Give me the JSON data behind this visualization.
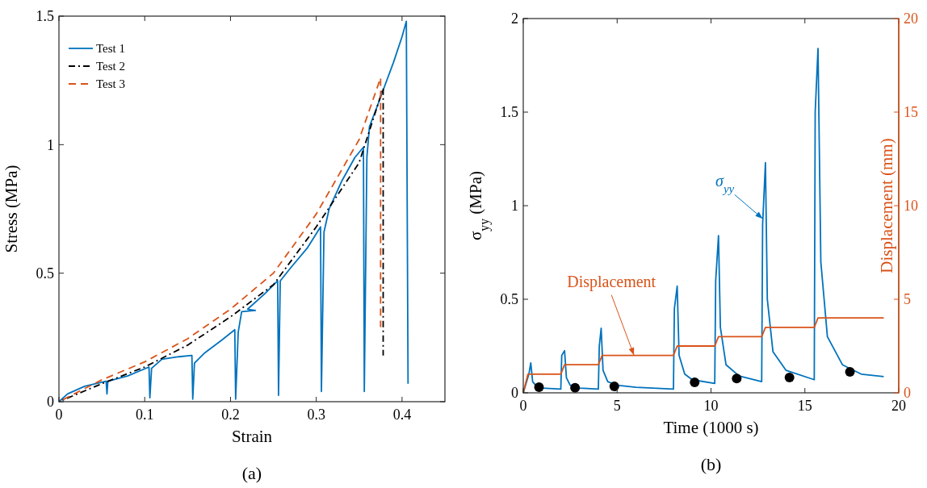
{
  "chart_data": [
    {
      "type": "line",
      "xlabel": "Strain",
      "ylabel": "Stress (MPa)",
      "xlim": [
        0,
        0.45
      ],
      "xticks": [
        0,
        0.1,
        0.2,
        0.3,
        0.4
      ],
      "ylim": [
        0,
        1.5
      ],
      "yticks": [
        0,
        0.5,
        1,
        1.5
      ],
      "legend": "top left",
      "annotations": [
        "(a)"
      ],
      "series": [
        {
          "name": "Test 1",
          "color": "#0072bd",
          "line_style": "solid",
          "x": [
            0,
            0.01,
            0.03,
            0.055,
            0.056,
            0.057,
            0.08,
            0.105,
            0.106,
            0.108,
            0.12,
            0.14,
            0.155,
            0.156,
            0.158,
            0.17,
            0.19,
            0.205,
            0.206,
            0.209,
            0.213,
            0.229,
            0.22,
            0.24,
            0.255,
            0.256,
            0.258,
            0.27,
            0.29,
            0.305,
            0.306,
            0.309,
            0.315,
            0.33,
            0.345,
            0.355,
            0.356,
            0.359,
            0.362,
            0.37,
            0.38,
            0.39,
            0.4,
            0.405,
            0.407
          ],
          "values": [
            0,
            0.03,
            0.06,
            0.08,
            0.03,
            0.08,
            0.1,
            0.135,
            0.015,
            0.13,
            0.165,
            0.175,
            0.18,
            0.01,
            0.15,
            0.19,
            0.24,
            0.28,
            0.01,
            0.27,
            0.35,
            0.355,
            0.36,
            0.42,
            0.47,
            0.025,
            0.47,
            0.52,
            0.6,
            0.68,
            0.04,
            0.66,
            0.75,
            0.86,
            0.95,
            0.99,
            0.04,
            0.95,
            1.07,
            1.14,
            1.23,
            1.32,
            1.42,
            1.48,
            0.07
          ]
        },
        {
          "name": "Test 2",
          "color": "#000000",
          "line_style": "dashdot",
          "x": [
            0,
            0.05,
            0.1,
            0.15,
            0.2,
            0.25,
            0.3,
            0.35,
            0.378,
            0.378
          ],
          "values": [
            0,
            0.07,
            0.135,
            0.22,
            0.33,
            0.455,
            0.68,
            0.93,
            1.22,
            0.18
          ]
        },
        {
          "name": "Test 3",
          "color": "#d95319",
          "line_style": "dashed",
          "x": [
            0,
            0.05,
            0.1,
            0.15,
            0.2,
            0.25,
            0.3,
            0.35,
            0.375,
            0.375
          ],
          "values": [
            0,
            0.085,
            0.155,
            0.245,
            0.36,
            0.5,
            0.73,
            1.02,
            1.26,
            0.29
          ]
        }
      ]
    },
    {
      "type": "line",
      "xlabel": "Time (1000 s)",
      "ylabel": "σ$_{yy}$ (MPa)",
      "y2label": "Displacement (mm)",
      "xlim": [
        0,
        20
      ],
      "xticks": [
        0,
        5,
        10,
        15,
        20
      ],
      "ylim": [
        0,
        2
      ],
      "yticks": [
        0,
        0.5,
        1,
        1.5,
        2
      ],
      "y2lim": [
        0,
        20
      ],
      "y2ticks": [
        0,
        5,
        10,
        15,
        20
      ],
      "annotations": [
        {
          "text": "σ$_{yy}$",
          "x": 12.76,
          "y": 0.93
        },
        {
          "text": "Displacement",
          "x": 5.9,
          "y": 0.2
        },
        "(b)"
      ],
      "series": [
        {
          "color": "#0072bd",
          "line_style": "solid",
          "x": [
            0,
            0.3,
            0.4,
            0.5,
            0.7,
            1.0,
            2.0,
            2.05,
            2.2,
            2.3,
            2.5,
            3.0,
            4.0,
            4.05,
            4.15,
            4.25,
            4.5,
            5,
            6,
            8.0,
            8.05,
            8.2,
            8.3,
            8.6,
            9,
            10.2,
            10.25,
            10.4,
            10.5,
            10.8,
            11.5,
            12.7,
            12.75,
            12.9,
            13.0,
            13.3,
            14,
            15.5,
            15.55,
            15.7,
            15.85,
            16.2,
            17,
            18,
            19.2
          ],
          "values": [
            0,
            0.1,
            0.16,
            0.06,
            0.035,
            0.025,
            0.02,
            0.2,
            0.225,
            0.08,
            0.04,
            0.025,
            0.02,
            0.25,
            0.345,
            0.12,
            0.06,
            0.04,
            0.03,
            0.02,
            0.45,
            0.57,
            0.2,
            0.1,
            0.07,
            0.05,
            0.6,
            0.84,
            0.35,
            0.15,
            0.09,
            0.06,
            0.9,
            1.23,
            0.5,
            0.22,
            0.12,
            0.07,
            1.5,
            1.84,
            0.7,
            0.3,
            0.15,
            0.1,
            0.087
          ]
        },
        {
          "color": "#d95319",
          "line_style": "solid",
          "axis": "y2",
          "x": [
            0,
            0.25,
            2.0,
            2.2,
            4.0,
            4.2,
            8.0,
            8.2,
            10.2,
            10.4,
            12.7,
            12.9,
            15.5,
            15.7,
            19.2
          ],
          "values": [
            0,
            1,
            1,
            1.5,
            1.5,
            2,
            2,
            2.5,
            2.5,
            3,
            3,
            3.5,
            3.5,
            4,
            4
          ]
        },
        {
          "type": "scatter",
          "color": "#000000",
          "marker": "circle",
          "x": [
            0.84,
            2.76,
            4.85,
            9.13,
            11.37,
            14.18,
            17.4
          ],
          "values": [
            0.03,
            0.027,
            0.034,
            0.056,
            0.077,
            0.082,
            0.112
          ]
        }
      ]
    }
  ]
}
